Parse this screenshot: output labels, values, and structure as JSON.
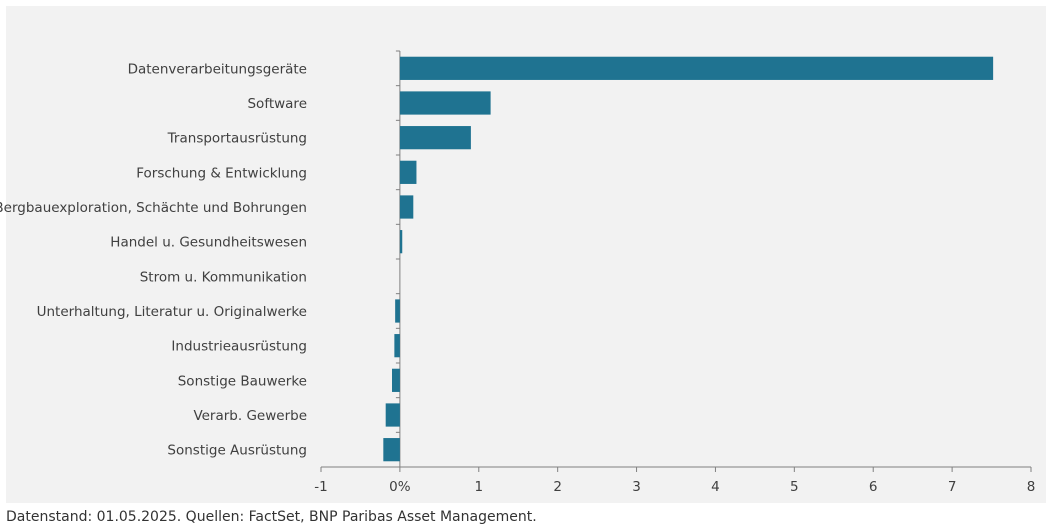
{
  "source_note": "Datenstand: 01.05.2025. Quellen: FactSet, BNP Paribas Asset Management.",
  "chart_data": {
    "type": "bar",
    "orientation": "horizontal",
    "title": "",
    "xlabel": "",
    "ylabel": "",
    "categories": [
      "Datenverarbeitungsgeräte",
      "Software",
      "Transportausrüstung",
      "Forschung & Entwicklung",
      "Bergbauexploration, Schächte und Bohrungen",
      "Handel u. Gesundheitswesen",
      "Strom u. Kommunikation",
      "Unterhaltung, Literatur u. Originalwerke",
      "Industrieausrüstung",
      "Sonstige Bauwerke",
      "Verarb. Gewerbe",
      "Sonstige Ausrüstung"
    ],
    "values": [
      7.52,
      1.15,
      0.9,
      0.21,
      0.17,
      0.03,
      0.0,
      -0.06,
      -0.07,
      -0.1,
      -0.18,
      -0.21
    ],
    "xlim": [
      -1,
      8
    ],
    "xticks": [
      -1,
      0,
      1,
      2,
      3,
      4,
      5,
      6,
      7,
      8
    ],
    "xtick_labels": [
      "-1",
      "0%",
      "1",
      "2",
      "3",
      "4",
      "5",
      "6",
      "7",
      "8"
    ],
    "bar_color": "#1f7391",
    "grid": false,
    "legend": "none"
  }
}
